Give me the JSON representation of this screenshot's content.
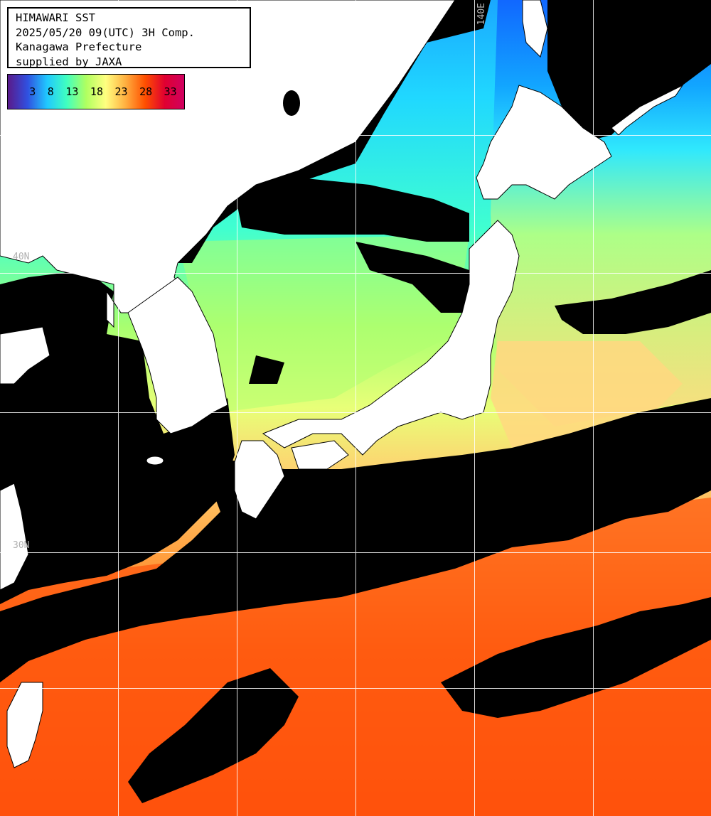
{
  "title_box": {
    "line1": "HIMAWARI SST",
    "line2": "2025/05/20 09(UTC) 3H Comp.",
    "line3": "Kanagawa Prefecture",
    "line4": "supplied by JAXA"
  },
  "color_scale": {
    "ticks": [
      "3",
      "8",
      "13",
      "18",
      "23",
      "28",
      "33"
    ],
    "gradient_colors": [
      "#5a1a8a",
      "#3050e0",
      "#20c8ff",
      "#40ffc0",
      "#b0ff60",
      "#ffff80",
      "#ffb040",
      "#ff5000",
      "#e00030",
      "#d00060"
    ]
  },
  "grid": {
    "lon_label": "140E",
    "lat_labels": [
      "40N",
      "30N"
    ]
  },
  "colors": {
    "land": "#ffffff",
    "cloud_no_data": "#000000",
    "grid_line": "#ffffff",
    "sst_cold": "#20c8ff",
    "sst_cool": "#40ffd0",
    "sst_mild": "#b0ff60",
    "sst_warm": "#ffe080",
    "sst_hot": "#ff5010"
  }
}
